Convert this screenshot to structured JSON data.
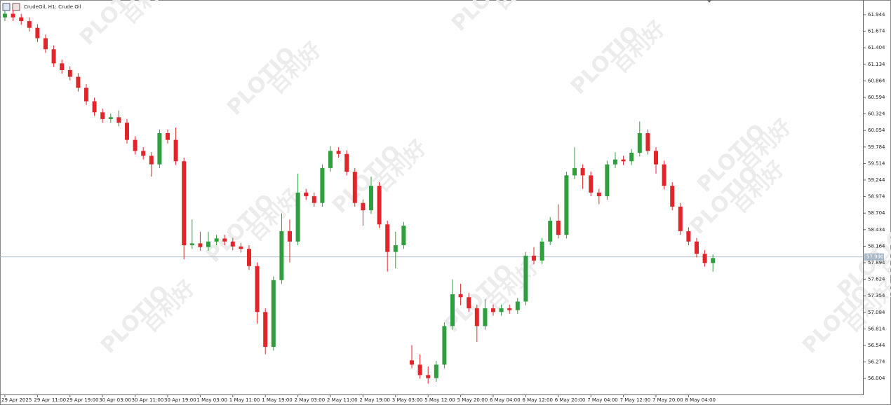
{
  "chart_data": {
    "type": "candlestick",
    "title": "CrudeOil, H1:  Crude Oil",
    "watermark": {
      "brand": "PLOTIO",
      "cn": "百利好"
    },
    "up_color": "#2e9e3e",
    "down_color": "#e0262b",
    "categories": [
      "29 Apr 2025",
      null,
      null,
      null,
      "29 Apr 11:00",
      null,
      null,
      null,
      "29 Apr 19:00",
      null,
      null,
      null,
      "30 Apr 03:00",
      null,
      null,
      null,
      "30 Apr 11:00",
      null,
      null,
      null,
      "30 Apr 19:00",
      null,
      null,
      null,
      "1 May 03:00",
      null,
      null,
      null,
      "1 May 11:00",
      null,
      null,
      null,
      "1 May 19:00",
      null,
      null,
      null,
      "2 May 03:00",
      null,
      null,
      null,
      "2 May 11:00",
      null,
      null,
      null,
      "2 May 19:00",
      null,
      null,
      null,
      "3 May 03:00",
      null,
      null,
      null,
      "5 May 12:00",
      null,
      null,
      null,
      "5 May 20:00",
      null,
      null,
      null,
      "6 May 04:00",
      null,
      null,
      null,
      "6 May 12:00",
      null,
      null,
      null,
      "6 May 20:00",
      null,
      null,
      null,
      "7 May 04:00",
      null,
      null,
      null,
      "7 May 12:00",
      null,
      null,
      null,
      "7 May 20:00",
      null,
      null,
      null,
      "8 May 04:00",
      null,
      null,
      null
    ],
    "open": [
      61.9,
      61.96,
      61.9,
      61.84,
      61.73,
      61.56,
      61.38,
      61.15,
      61.04,
      60.93,
      60.75,
      60.53,
      60.35,
      60.24,
      60.27,
      60.18,
      59.9,
      59.72,
      59.64,
      59.5,
      60.01,
      59.9,
      59.55,
      58.18,
      58.21,
      58.15,
      58.24,
      58.29,
      58.24,
      58.16,
      58.12,
      57.84,
      57.09,
      56.52,
      57.61,
      58.41,
      58.24,
      59.04,
      58.98,
      58.87,
      59.44,
      59.72,
      59.67,
      59.38,
      58.87,
      58.75,
      59.15,
      58.52,
      58.07,
      58.18,
      56.3,
      56.23,
      56.06,
      56.01,
      56.23,
      56.86,
      57.38,
      57.33,
      57.15,
      56.86,
      57.15,
      57.09,
      57.15,
      57.12,
      57.26,
      58.01,
      57.93,
      58.24,
      58.58,
      58.35,
      59.32,
      59.44,
      59.32,
      59.04,
      58.98,
      59.5,
      59.58,
      59.55,
      59.69,
      60.01,
      59.72,
      59.5,
      59.15,
      58.81,
      58.41,
      58.24,
      58.04,
      57.89
    ],
    "high": [
      62.02,
      62.02,
      61.96,
      61.9,
      61.79,
      61.62,
      61.44,
      61.21,
      61.1,
      60.99,
      60.81,
      60.59,
      60.41,
      60.33,
      60.38,
      60.24,
      59.96,
      59.78,
      59.7,
      60.07,
      60.07,
      60.1,
      59.61,
      58.6,
      58.4,
      58.4,
      58.35,
      58.35,
      58.3,
      58.22,
      58.18,
      57.9,
      57.15,
      57.67,
      58.7,
      58.6,
      59.35,
      59.1,
      59.04,
      59.5,
      59.8,
      59.78,
      59.73,
      59.44,
      58.93,
      59.3,
      59.21,
      58.58,
      58.4,
      58.56,
      56.55,
      56.4,
      56.2,
      56.29,
      56.92,
      57.62,
      57.55,
      57.4,
      57.21,
      57.3,
      57.21,
      57.21,
      57.21,
      57.32,
      58.07,
      58.15,
      58.3,
      58.64,
      58.85,
      59.38,
      59.78,
      59.5,
      59.38,
      59.1,
      59.56,
      59.7,
      59.64,
      59.75,
      60.2,
      60.07,
      59.78,
      59.56,
      59.21,
      58.87,
      58.47,
      58.3,
      58.1,
      58.03
    ],
    "low": [
      61.84,
      61.84,
      61.78,
      61.67,
      61.5,
      61.32,
      61.09,
      60.98,
      60.87,
      60.69,
      60.47,
      60.29,
      60.18,
      60.18,
      60.12,
      59.84,
      59.66,
      59.58,
      59.3,
      59.44,
      59.84,
      59.49,
      57.95,
      58.12,
      58.09,
      58.09,
      58.18,
      58.18,
      58.1,
      58.06,
      57.78,
      56.9,
      56.4,
      56.46,
      57.55,
      57.9,
      58.18,
      58.92,
      58.81,
      58.81,
      59.38,
      59.61,
      59.32,
      58.81,
      58.5,
      58.69,
      58.46,
      57.75,
      57.8,
      58.12,
      56.17,
      56.0,
      55.92,
      55.95,
      56.17,
      56.8,
      57.2,
      57.09,
      56.6,
      56.8,
      57.03,
      57.03,
      57.06,
      57.06,
      57.2,
      57.87,
      57.87,
      58.18,
      58.29,
      58.29,
      59.26,
      59.1,
      58.98,
      58.85,
      58.92,
      59.44,
      59.49,
      59.49,
      59.63,
      59.66,
      59.35,
      59.09,
      58.75,
      58.35,
      58.18,
      57.98,
      57.83,
      57.75
    ],
    "close": [
      61.96,
      61.9,
      61.84,
      61.73,
      61.56,
      61.38,
      61.15,
      61.04,
      60.93,
      60.75,
      60.53,
      60.35,
      60.24,
      60.27,
      60.18,
      59.9,
      59.72,
      59.64,
      59.5,
      60.01,
      59.9,
      59.55,
      58.18,
      58.21,
      58.15,
      58.24,
      58.29,
      58.24,
      58.16,
      58.12,
      57.84,
      57.09,
      56.52,
      57.61,
      58.41,
      58.24,
      59.04,
      58.98,
      58.87,
      59.44,
      59.72,
      59.67,
      59.38,
      58.87,
      58.75,
      59.15,
      58.52,
      58.07,
      58.18,
      58.5,
      56.23,
      56.06,
      56.01,
      56.23,
      56.86,
      57.38,
      57.33,
      57.15,
      56.86,
      57.15,
      57.09,
      57.15,
      57.12,
      57.26,
      58.01,
      57.93,
      58.24,
      58.58,
      58.35,
      59.32,
      59.44,
      59.32,
      59.04,
      58.98,
      59.5,
      59.58,
      59.55,
      59.69,
      60.01,
      59.72,
      59.5,
      59.15,
      58.81,
      58.41,
      58.24,
      58.04,
      57.89,
      57.97
    ],
    "ylim": [
      55.743,
      62.184
    ],
    "yticks": [
      61.944,
      61.674,
      61.404,
      61.134,
      60.864,
      60.594,
      60.324,
      60.054,
      59.784,
      59.514,
      59.244,
      58.974,
      58.704,
      58.434,
      58.164,
      57.894,
      57.624,
      57.354,
      57.084,
      56.814,
      56.544,
      56.274,
      56.004
    ],
    "price_line": {
      "value": 57.99,
      "label": "57.990"
    }
  }
}
